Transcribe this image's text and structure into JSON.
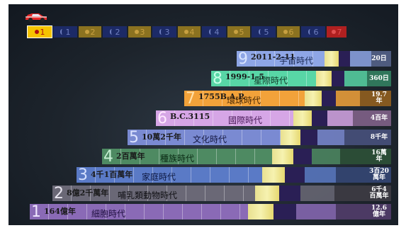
{
  "tabs": [
    {
      "label": "1",
      "icon": "sun-icon",
      "bg": "#f5c400",
      "fg": "#b01010",
      "active": true
    },
    {
      "label": "1",
      "icon": "moon-icon",
      "bg": "#1c2a66",
      "fg": "#6f7fbf"
    },
    {
      "label": "2",
      "icon": "sun-icon",
      "bg": "#8b7220",
      "fg": "#c8a040"
    },
    {
      "label": "2",
      "icon": "moon-icon",
      "bg": "#1c2a66",
      "fg": "#6f7fbf"
    },
    {
      "label": "3",
      "icon": "sun-icon",
      "bg": "#8b7220",
      "fg": "#c8a040"
    },
    {
      "label": "3",
      "icon": "moon-icon",
      "bg": "#1c2a66",
      "fg": "#6f7fbf"
    },
    {
      "label": "4",
      "icon": "sun-icon",
      "bg": "#8b7220",
      "fg": "#c8a040"
    },
    {
      "label": "4",
      "icon": "moon-icon",
      "bg": "#1c2a66",
      "fg": "#6f7fbf"
    },
    {
      "label": "5",
      "icon": "sun-icon",
      "bg": "#8b7220",
      "fg": "#c8a040"
    },
    {
      "label": "5",
      "icon": "moon-icon",
      "bg": "#1c2a66",
      "fg": "#6f7fbf"
    },
    {
      "label": "6",
      "icon": "sun-icon",
      "bg": "#8b7220",
      "fg": "#c8a040"
    },
    {
      "label": "6",
      "icon": "moon-icon",
      "bg": "#1c2a66",
      "fg": "#6f7fbf"
    },
    {
      "label": "7",
      "icon": "sun-icon",
      "bg": "#b02020",
      "fg": "#e05050"
    }
  ],
  "rows": [
    {
      "num": "9",
      "date": "2011-2-11",
      "name": "宇宙時代",
      "end": "20日",
      "color": "#8ea6e6",
      "num_color": "#d8e4ff",
      "name_color": "#1a2a55"
    },
    {
      "num": "8",
      "date": "1999-1-5",
      "name": "星際時代",
      "end": "360日",
      "color": "#58d6a6",
      "num_color": "#c8ffe8",
      "name_color": "#123a2a"
    },
    {
      "num": "7",
      "date": "1755B.A.P.",
      "name": "環球時代",
      "end": "19.7年",
      "color": "#f2a23a",
      "num_color": "#ffe0a8",
      "name_color": "#4a2a05"
    },
    {
      "num": "6",
      "date": "B.C.3115",
      "name": "國際時代",
      "end": "4百年",
      "color": "#d6a6e6",
      "num_color": "#ffe8ff",
      "name_color": "#4a1a5a"
    },
    {
      "num": "5",
      "date": "10萬2千年",
      "name": "文化時代",
      "end": "8千年",
      "color": "#7a8ad2",
      "num_color": "#dce2ff",
      "name_color": "#161a44"
    },
    {
      "num": "4",
      "date": "2百萬年",
      "name": "種族時代",
      "end": "16萬年",
      "color": "#4e8a62",
      "num_color": "#c8f0d4",
      "name_color": "#0a2a14"
    },
    {
      "num": "3",
      "date": "4千1百萬年",
      "name": "家庭時代",
      "end": "3百20萬年",
      "color": "#5a7ac6",
      "num_color": "#d4e0ff",
      "name_color": "#0e1a44"
    },
    {
      "num": "2",
      "date": "8億2千萬年",
      "name": "哺乳類動物時代",
      "end": "6千4百萬年",
      "color": "#6a6876",
      "num_color": "#e8e6f0",
      "name_color": "#101014"
    },
    {
      "num": "1",
      "date": "164億年",
      "name": "細胞時代",
      "end": "12.6億年",
      "color": "#8a6ab6",
      "num_color": "#f0e6ff",
      "name_color": "#201040"
    }
  ]
}
